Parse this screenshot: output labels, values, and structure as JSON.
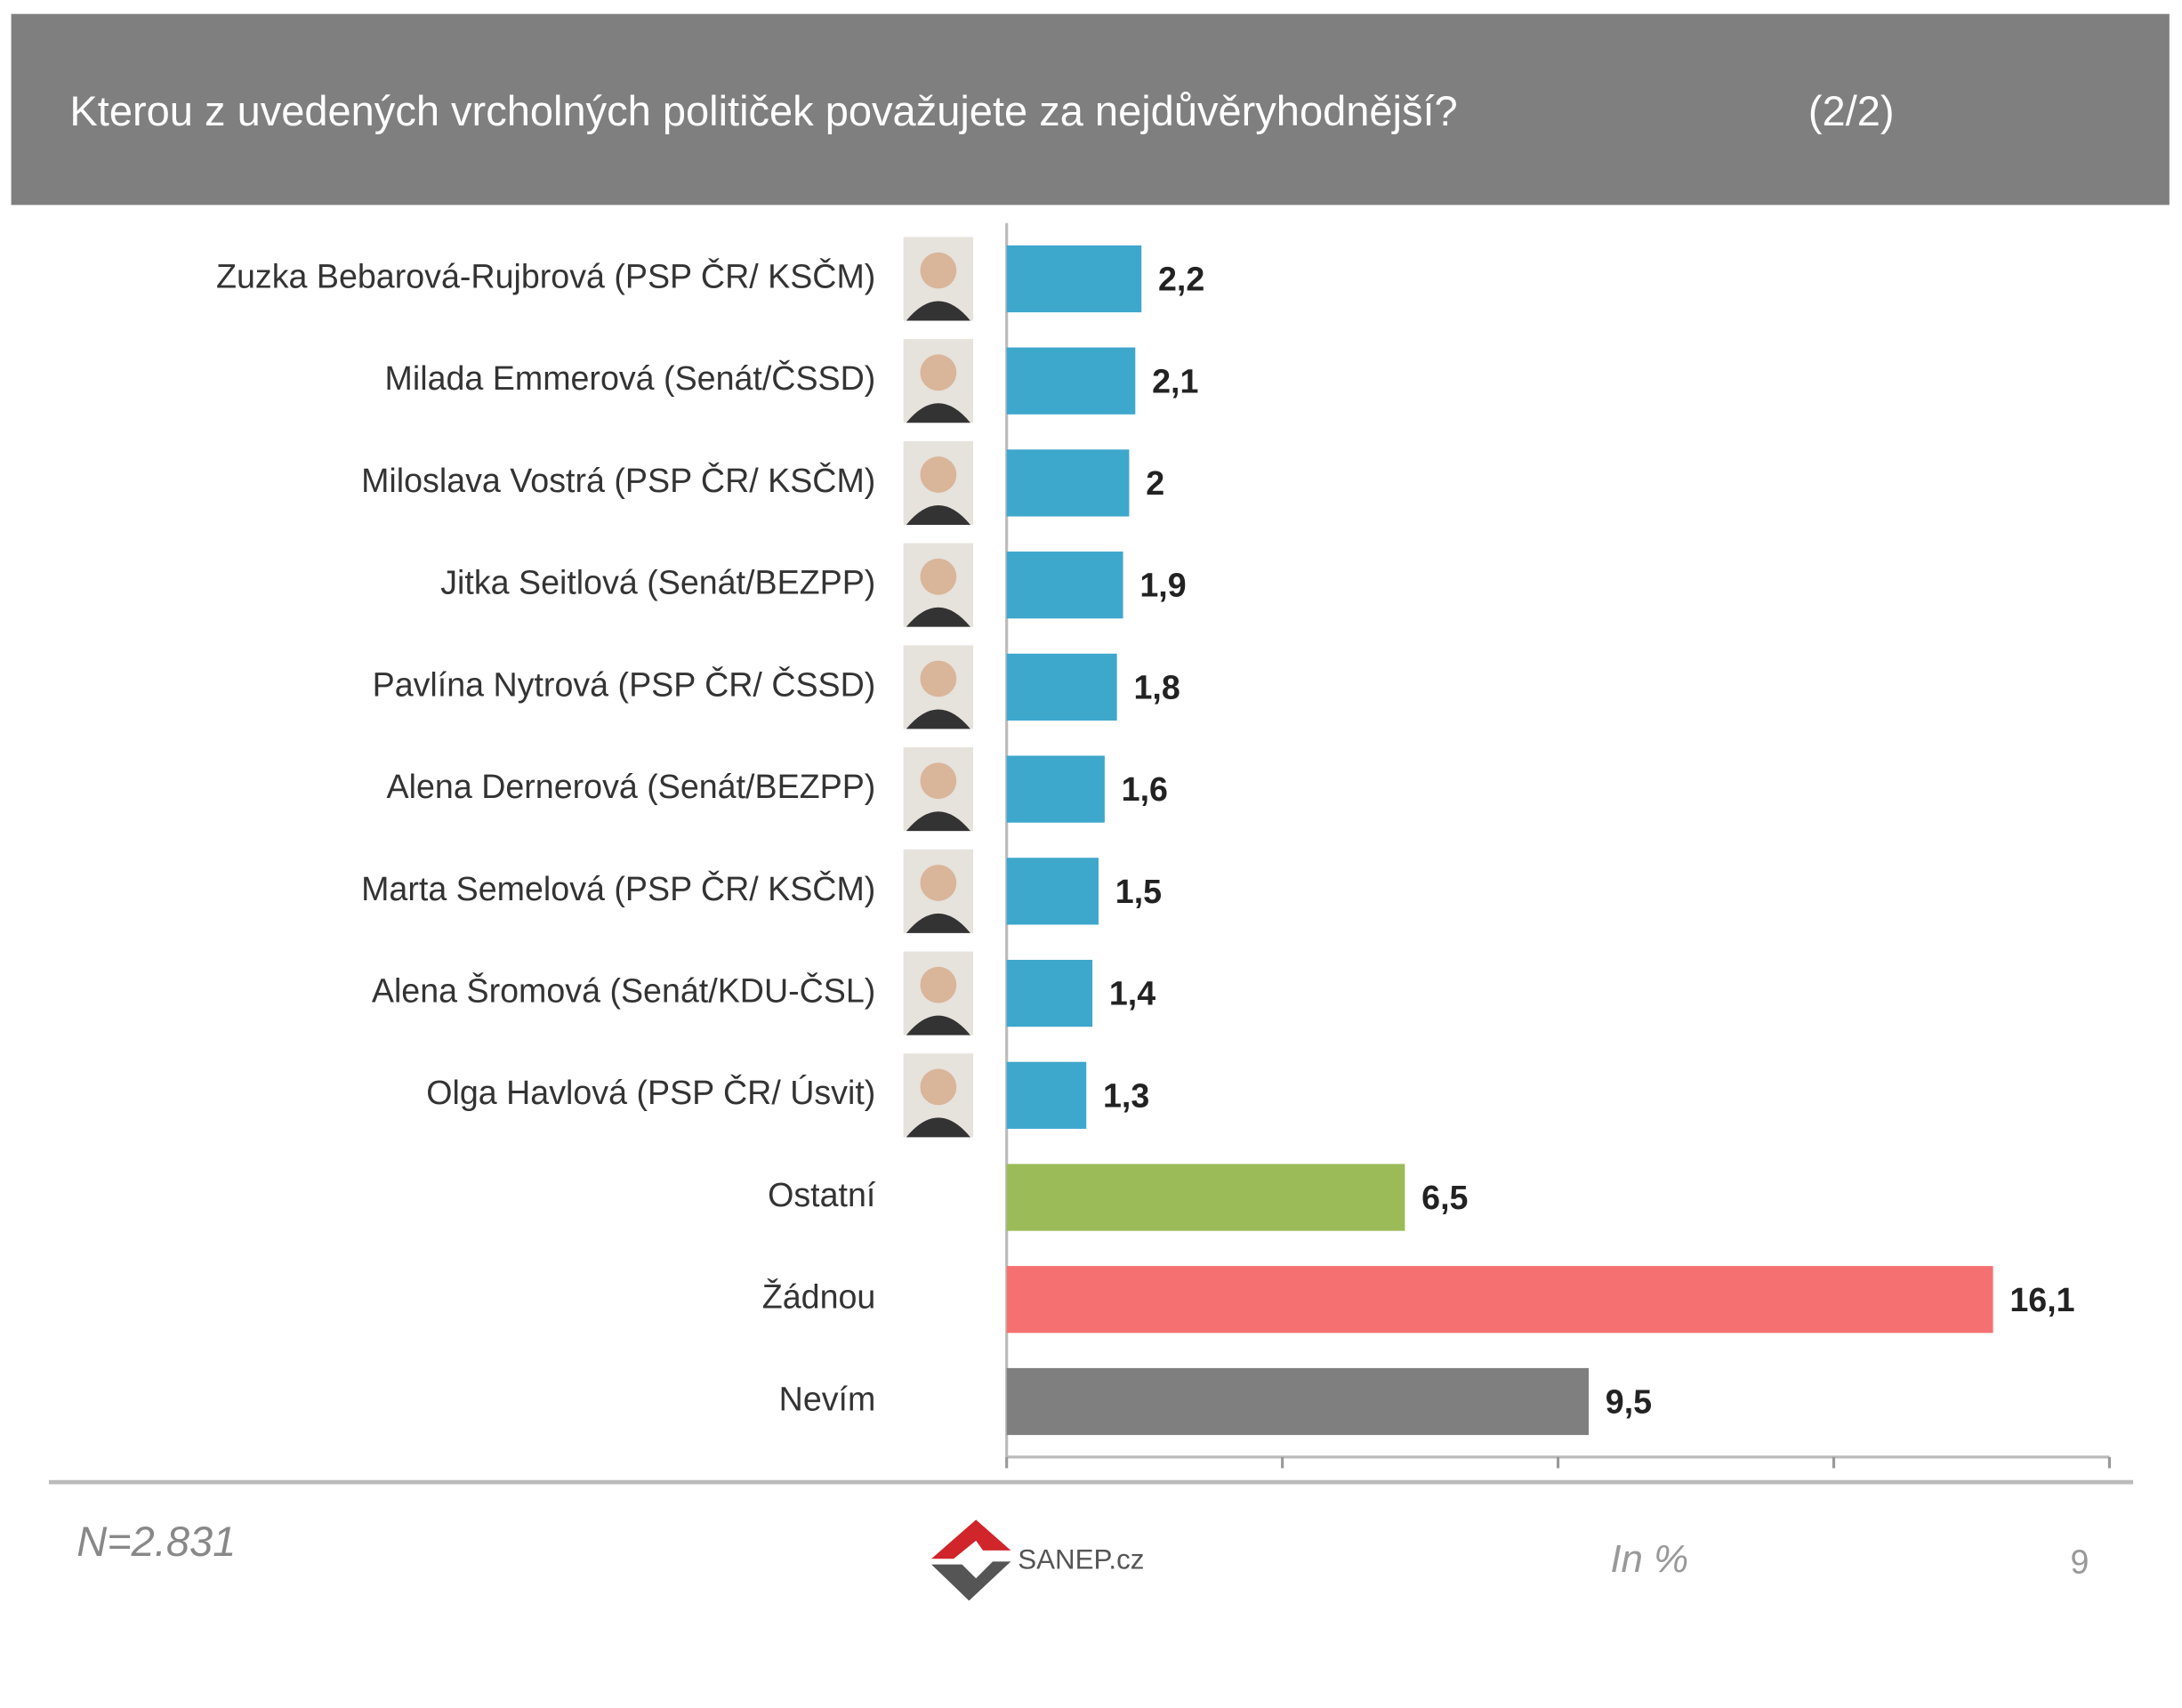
{
  "chart_data": {
    "type": "bar",
    "orientation": "horizontal",
    "title": "Kterou z uvedených vrcholných političek považujete za nejdůvěryhodnější?",
    "part": "(2/2)",
    "categories": [
      "Zuzka Bebarová-Rujbrová (PSP ČR/ KSČM)",
      "Milada Emmerová (Senát/ČSSD)",
      "Miloslava Vostrá (PSP ČR/ KSČM)",
      "Jitka Seitlová (Senát/BEZPP)",
      "Pavlína Nytrová (PSP ČR/ ČSSD)",
      "Alena Dernerová (Senát/BEZPP)",
      "Marta Semelová (PSP ČR/ KSČM)",
      "Alena Šromová (Senát/KDU-ČSL)",
      "Olga Havlová (PSP ČR/ Úsvit)",
      "Ostatní",
      "Žádnou",
      "Nevím"
    ],
    "values": [
      2.2,
      2.1,
      2,
      1.9,
      1.8,
      1.6,
      1.5,
      1.4,
      1.3,
      6.5,
      16.1,
      9.5
    ],
    "value_labels": [
      "2,2",
      "2,1",
      "2",
      "1,9",
      "1,8",
      "1,6",
      "1,5",
      "1,4",
      "1,3",
      "6,5",
      "16,1",
      "9,5"
    ],
    "colors": [
      "#3ea7cc",
      "#3ea7cc",
      "#3ea7cc",
      "#3ea7cc",
      "#3ea7cc",
      "#3ea7cc",
      "#3ea7cc",
      "#3ea7cc",
      "#3ea7cc",
      "#9bbb59",
      "#f57070",
      "#7f7f7f"
    ],
    "xlim": [
      0,
      18
    ],
    "xticks": [
      0,
      4.5,
      9,
      13.5,
      18
    ],
    "sample": "N=2.831",
    "unit_note": "In %",
    "source": "SANEP.cz",
    "page_number": "9"
  }
}
